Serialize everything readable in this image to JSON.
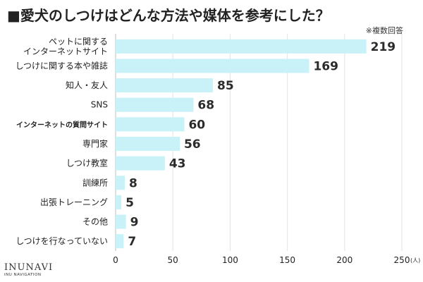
{
  "chart_data": {
    "type": "bar",
    "orientation": "horizontal",
    "title": "■愛犬のしつけはどんな方法や媒体を参考にした？",
    "note": "※複数回答",
    "categories": [
      [
        "ペットに関する",
        "インターネットサイト"
      ],
      [
        "しつけに関する本や雑誌"
      ],
      [
        "知人・友人"
      ],
      [
        "SNS"
      ],
      [
        "インターネットの質問サイト"
      ],
      [
        "専門家"
      ],
      [
        "しつけ教室"
      ],
      [
        "訓練所"
      ],
      [
        "出張トレーニング"
      ],
      [
        "その他"
      ],
      [
        "しつけを行なっていない"
      ]
    ],
    "values": [
      219,
      169,
      85,
      68,
      60,
      56,
      43,
      8,
      5,
      9,
      7
    ],
    "xlim": [
      0,
      250
    ],
    "xticks": [
      0,
      50,
      100,
      150,
      200,
      250
    ],
    "tick_labels": [
      "0",
      "50",
      "100",
      "150",
      "200",
      "250"
    ],
    "unit": "(人)",
    "bar_color": "#c9f1f8",
    "grid": "vertical"
  },
  "footer": {
    "brand": "INUNAVI",
    "sub": "INU NAVIGATION"
  }
}
